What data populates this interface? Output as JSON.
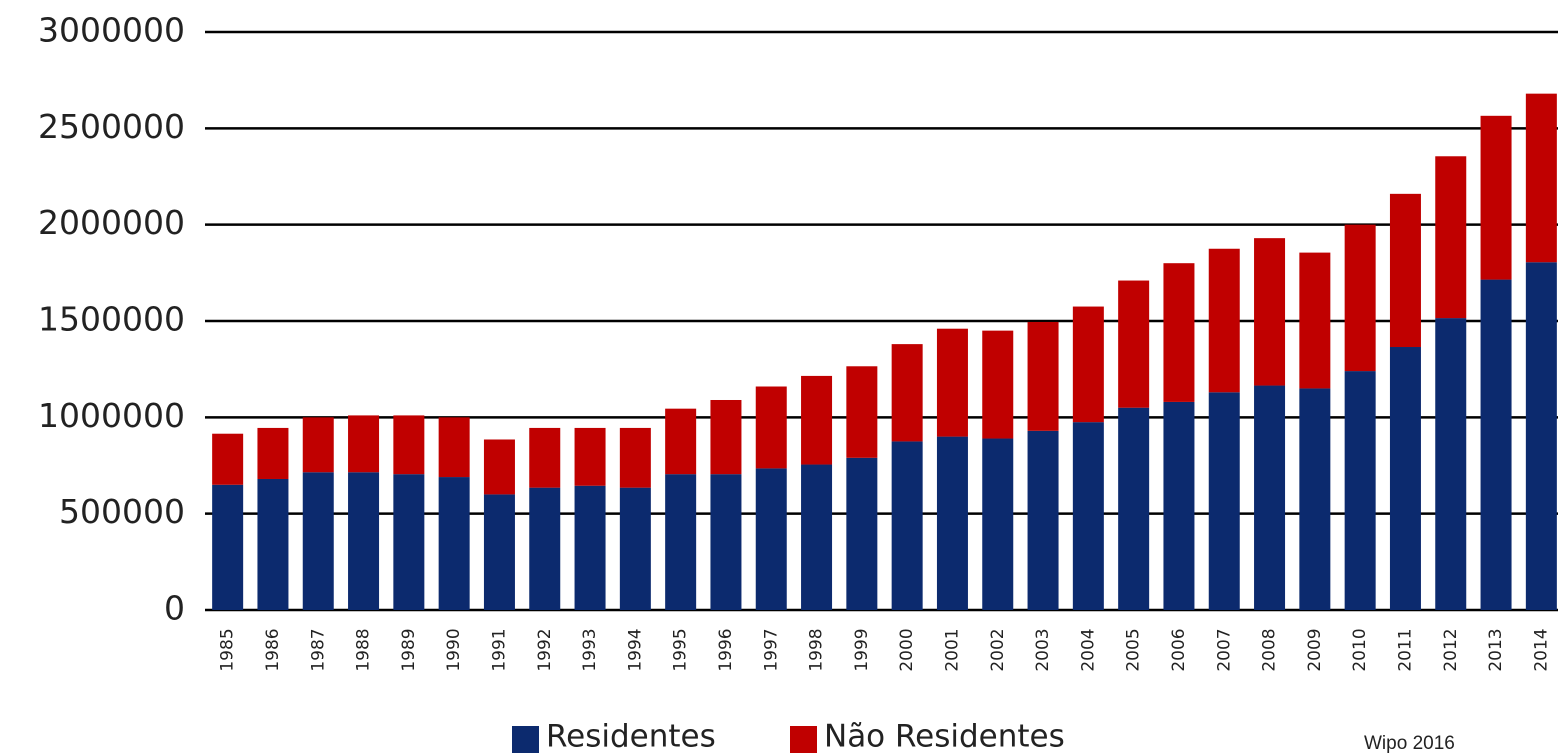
{
  "chart_data": {
    "type": "stacked_bar",
    "categories": [
      "1985",
      "1986",
      "1987",
      "1988",
      "1989",
      "1990",
      "1991",
      "1992",
      "1993",
      "1994",
      "1995",
      "1996",
      "1997",
      "1998",
      "1999",
      "2000",
      "2001",
      "2002",
      "2003",
      "2004",
      "2005",
      "2006",
      "2007",
      "2008",
      "2009",
      "2010",
      "2011",
      "2012",
      "2013",
      "2014"
    ],
    "series": [
      {
        "name": "Residentes",
        "color": "#0c2a6e",
        "values": [
          650000,
          680000,
          715000,
          715000,
          705000,
          690000,
          600000,
          635000,
          645000,
          635000,
          705000,
          705000,
          735000,
          755000,
          790000,
          875000,
          900000,
          890000,
          930000,
          975000,
          1050000,
          1080000,
          1130000,
          1165000,
          1150000,
          1240000,
          1365000,
          1515000,
          1715000,
          1805000
        ]
      },
      {
        "name": "Não Residentes",
        "color": "#c00000",
        "values": [
          265000,
          265000,
          285000,
          295000,
          305000,
          310000,
          285000,
          310000,
          300000,
          310000,
          340000,
          385000,
          425000,
          460000,
          475000,
          505000,
          560000,
          560000,
          565000,
          600000,
          660000,
          720000,
          745000,
          765000,
          705000,
          760000,
          795000,
          840000,
          850000,
          875000
        ]
      }
    ],
    "ylim": [
      0,
      3000000
    ],
    "yticks": [
      0,
      500000,
      1000000,
      1500000,
      2000000,
      2500000,
      3000000
    ],
    "grid": true,
    "annotation": "Wipo 2016"
  }
}
